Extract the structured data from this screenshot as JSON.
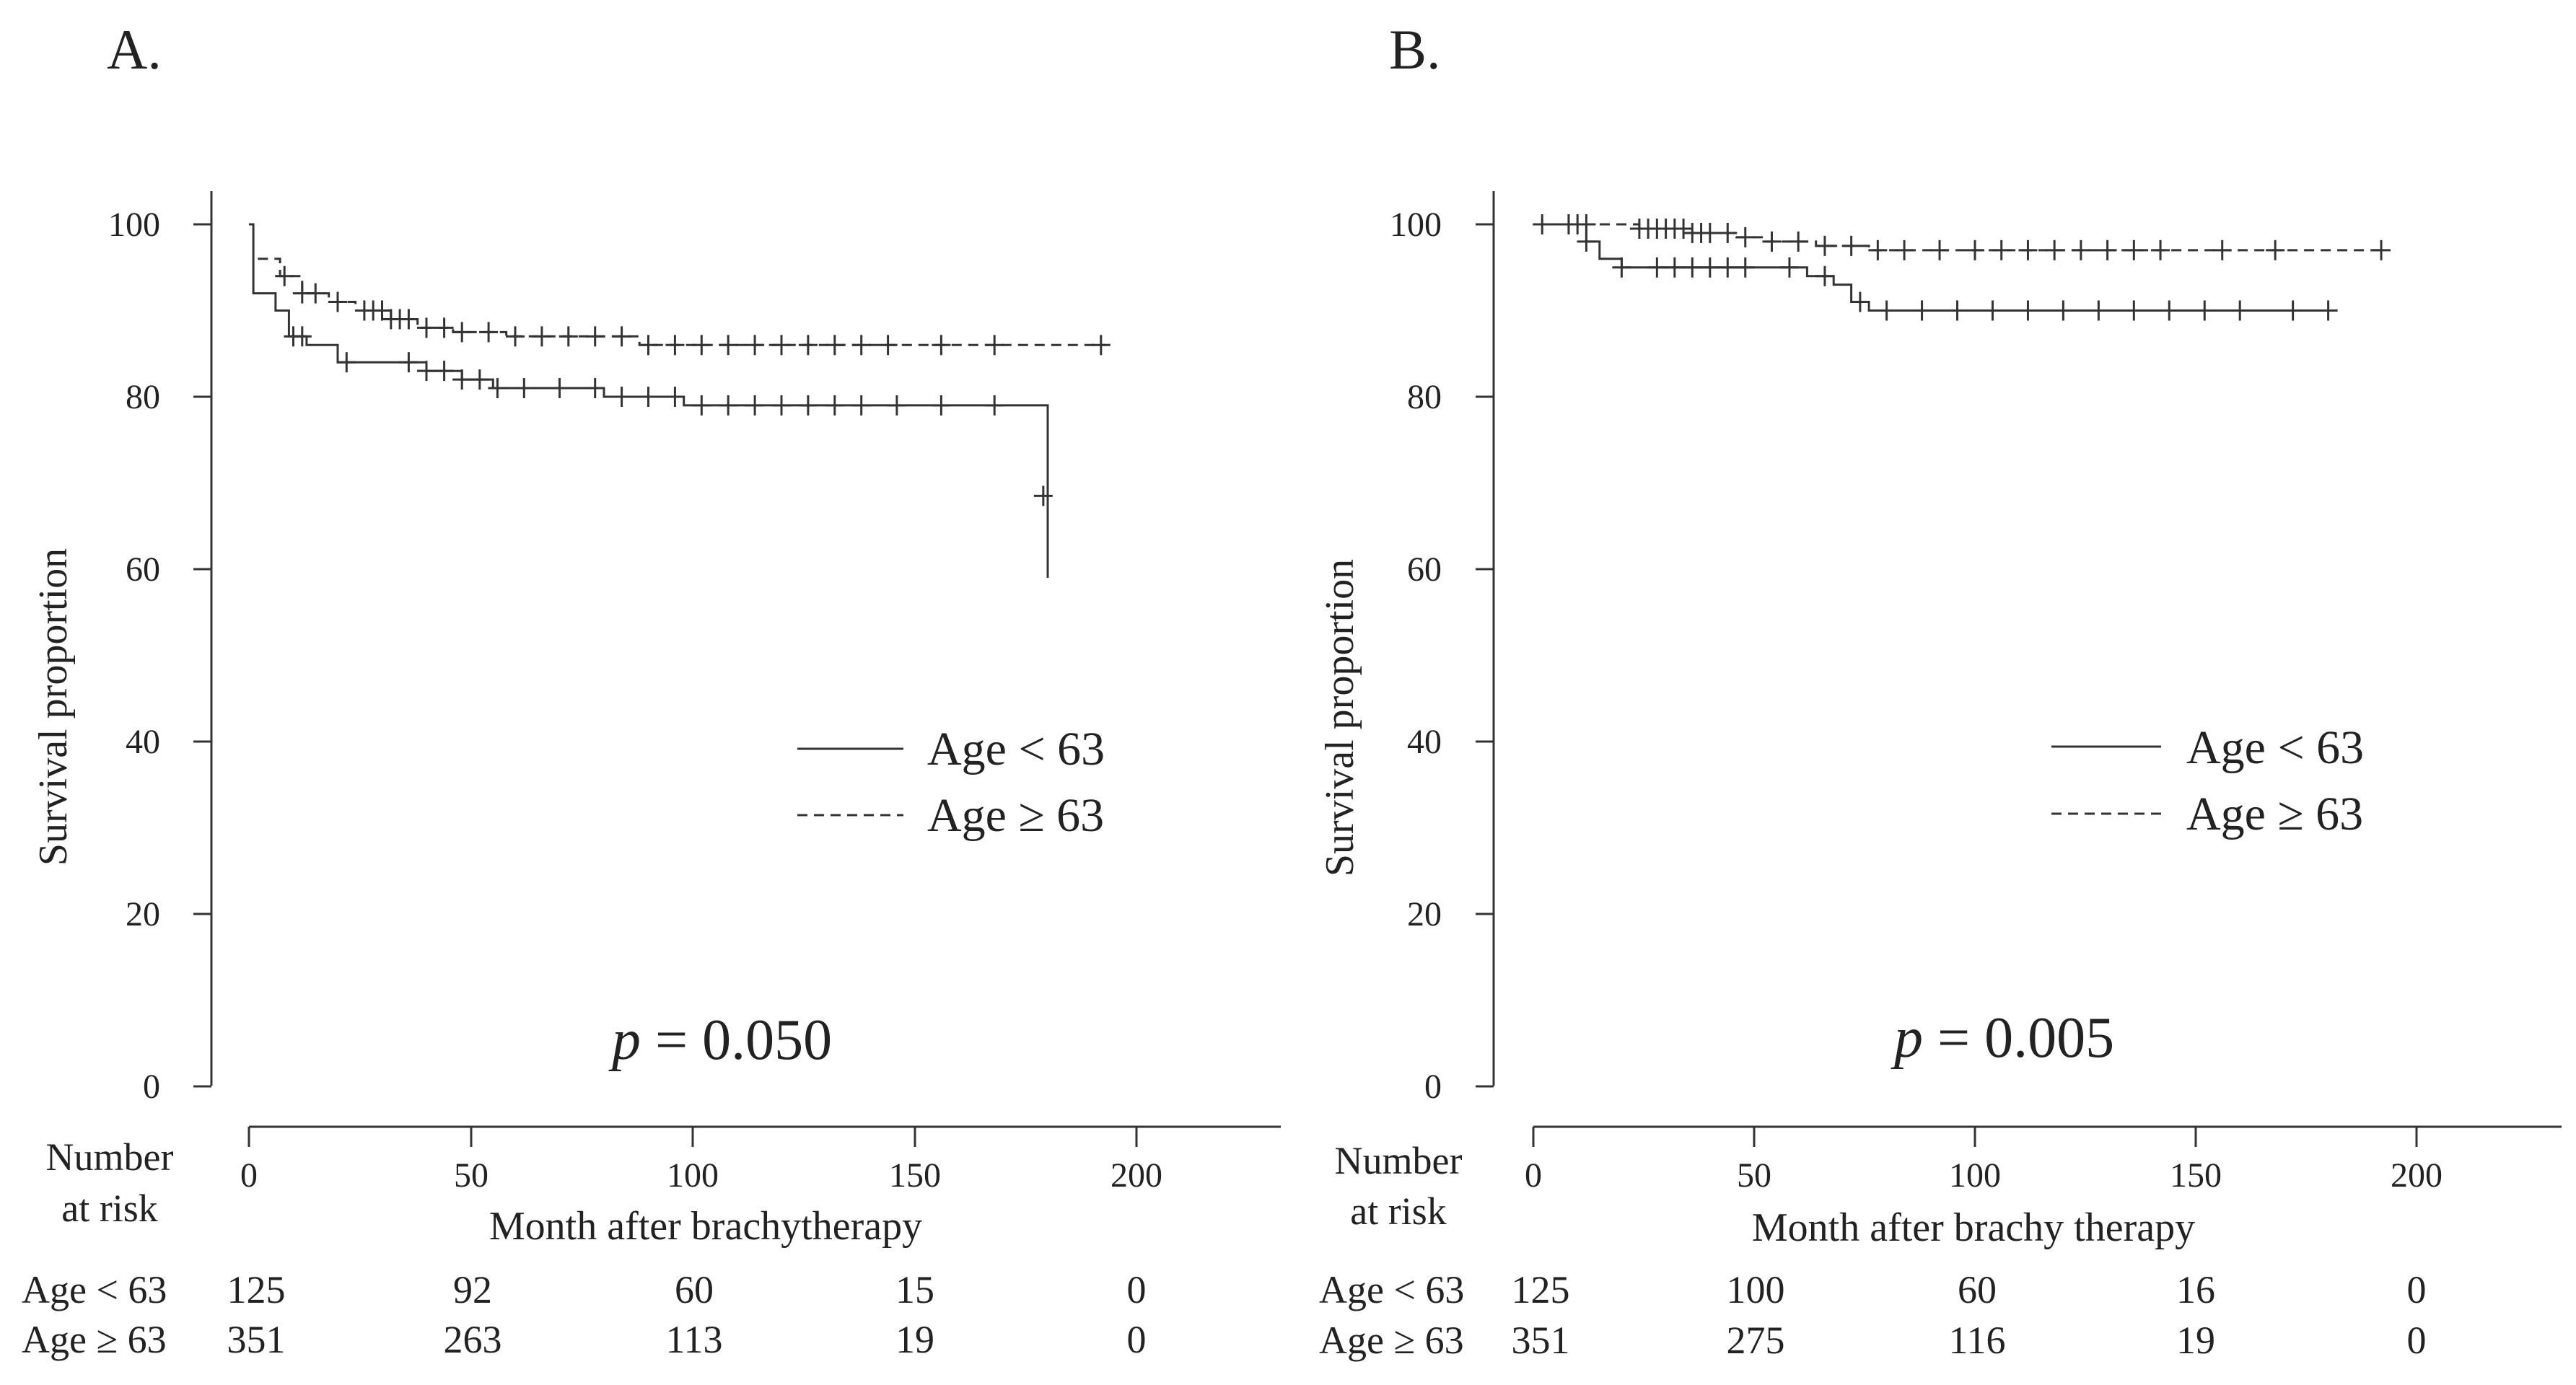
{
  "chart_data": [
    {
      "type": "line",
      "panel_label": "A.",
      "xlabel": "Month after brachytherapy",
      "ylabel": "Survival proportion",
      "xlim": [
        0,
        230
      ],
      "ylim": [
        0,
        100
      ],
      "x_ticks": [
        "0",
        "50",
        "100",
        "150",
        "200"
      ],
      "y_ticks": [
        "0",
        "20",
        "40",
        "60",
        "80",
        "100"
      ],
      "p_value": {
        "symbol": "p",
        "text": " = 0.050"
      },
      "legend": [
        {
          "name": "Age < 63",
          "style": "solid"
        },
        {
          "name": "Age ≥ 63",
          "style": "dashed"
        }
      ],
      "risk_table": {
        "header_line1": "Number",
        "header_line2": "at risk",
        "times": [
          0,
          50,
          100,
          150,
          200
        ],
        "rows": [
          {
            "label": "Age < 63",
            "counts": [
              "125",
              "92",
              "60",
              "15",
              "0"
            ]
          },
          {
            "label": "Age ≥ 63",
            "counts": [
              "351",
              "263",
              "113",
              "19",
              "0"
            ]
          }
        ]
      },
      "series": [
        {
          "name": "Age < 63",
          "style": "solid",
          "steps": [
            [
              0,
              100
            ],
            [
              1,
              92
            ],
            [
              6,
              90
            ],
            [
              9,
              87
            ],
            [
              13,
              86
            ],
            [
              20,
              84
            ],
            [
              36,
              84
            ],
            [
              40,
              83
            ],
            [
              48,
              82
            ],
            [
              55,
              81
            ],
            [
              76,
              81
            ],
            [
              80,
              80
            ],
            [
              95,
              80
            ],
            [
              98,
              79
            ],
            [
              180,
              79
            ],
            [
              180,
              59
            ]
          ],
          "censor_times": [
            10,
            12,
            22,
            36,
            40,
            44,
            48,
            52,
            56,
            62,
            70,
            78,
            84,
            90,
            96,
            102,
            108,
            114,
            120,
            126,
            132,
            138,
            146,
            156,
            168
          ],
          "censor_marks": [
            [
              179,
              68.5
            ]
          ]
        },
        {
          "name": "Age ≥ 63",
          "style": "dashed",
          "steps": [
            [
              2,
              96
            ],
            [
              7,
              94
            ],
            [
              12,
              92
            ],
            [
              18,
              91
            ],
            [
              24,
              90
            ],
            [
              32,
              89
            ],
            [
              38,
              88
            ],
            [
              46,
              87.5
            ],
            [
              58,
              87
            ],
            [
              80,
              87
            ],
            [
              88,
              86
            ],
            [
              193,
              86
            ]
          ],
          "censor_times": [
            8,
            12,
            15,
            20,
            26,
            28,
            30,
            32,
            34,
            36,
            40,
            44,
            48,
            54,
            60,
            66,
            72,
            78,
            84,
            90,
            96,
            102,
            108,
            114,
            120,
            126,
            132,
            138,
            144,
            156,
            168,
            192
          ]
        }
      ]
    },
    {
      "type": "line",
      "panel_label": "B.",
      "xlabel": "Month after brachy therapy",
      "ylabel": "Survival proportion",
      "xlim": [
        0,
        230
      ],
      "ylim": [
        0,
        100
      ],
      "x_ticks": [
        "0",
        "50",
        "100",
        "150",
        "200"
      ],
      "y_ticks": [
        "0",
        "20",
        "40",
        "60",
        "80",
        "100"
      ],
      "p_value": {
        "symbol": "p",
        "text": " = 0.005"
      },
      "legend": [
        {
          "name": "Age < 63",
          "style": "solid"
        },
        {
          "name": "Age ≥ 63",
          "style": "dashed"
        }
      ],
      "risk_table": {
        "header_line1": "Number",
        "header_line2": "at risk",
        "times": [
          0,
          50,
          100,
          150,
          200
        ],
        "rows": [
          {
            "label": "Age < 63",
            "counts": [
              "125",
              "100",
              "60",
              "16",
              "0"
            ]
          },
          {
            "label": "Age ≥ 63",
            "counts": [
              "351",
              "275",
              "116",
              "19",
              "0"
            ]
          }
        ]
      },
      "series": [
        {
          "name": "Age < 63",
          "style": "solid",
          "steps": [
            [
              0,
              100
            ],
            [
              12,
              98
            ],
            [
              15,
              96
            ],
            [
              20,
              95
            ],
            [
              60,
              95
            ],
            [
              62,
              94
            ],
            [
              68,
              93
            ],
            [
              72,
              91
            ],
            [
              76,
              90
            ],
            [
              181,
              90
            ]
          ],
          "censor_times": [
            2,
            8,
            12,
            20,
            28,
            32,
            36,
            40,
            44,
            48,
            58,
            66,
            74,
            80,
            88,
            96,
            104,
            112,
            120,
            128,
            136,
            144,
            152,
            160,
            172,
            180
          ]
        },
        {
          "name": "Age ≥ 63",
          "style": "dashed",
          "steps": [
            [
              0,
              100
            ],
            [
              24,
              99.5
            ],
            [
              36,
              99
            ],
            [
              46,
              98.5
            ],
            [
              52,
              98
            ],
            [
              62,
              98
            ],
            [
              64,
              97.5
            ],
            [
              74,
              97.5
            ],
            [
              76,
              97
            ],
            [
              193,
              97
            ]
          ],
          "censor_times": [
            8,
            10,
            12,
            24,
            26,
            28,
            30,
            32,
            34,
            36,
            38,
            40,
            44,
            48,
            54,
            60,
            66,
            72,
            78,
            84,
            92,
            100,
            106,
            112,
            118,
            124,
            130,
            136,
            142,
            156,
            168,
            192
          ]
        }
      ]
    }
  ]
}
